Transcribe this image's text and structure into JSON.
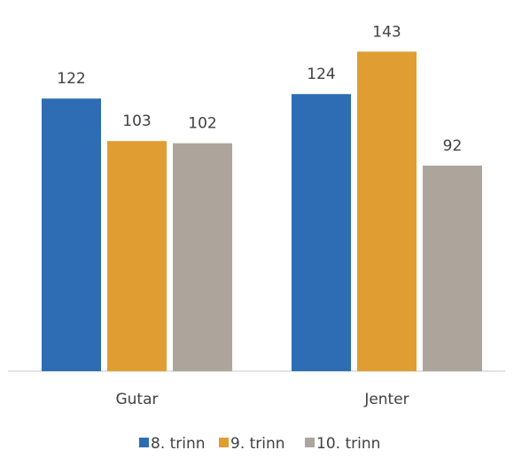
{
  "chart_data": {
    "type": "bar",
    "categories": [
      "Gutar",
      "Jenter"
    ],
    "series": [
      {
        "name": "8. trinn",
        "values": [
          122,
          124
        ],
        "color": "#2E6DB4"
      },
      {
        "name": "9. trinn",
        "values": [
          103,
          143
        ],
        "color": "#E09E32"
      },
      {
        "name": "10. trinn",
        "values": [
          102,
          92
        ],
        "color": "#ADA59C"
      }
    ],
    "ylim": [
      0,
      155
    ],
    "data_labels": true,
    "grid": false,
    "legend_position": "bottom"
  }
}
